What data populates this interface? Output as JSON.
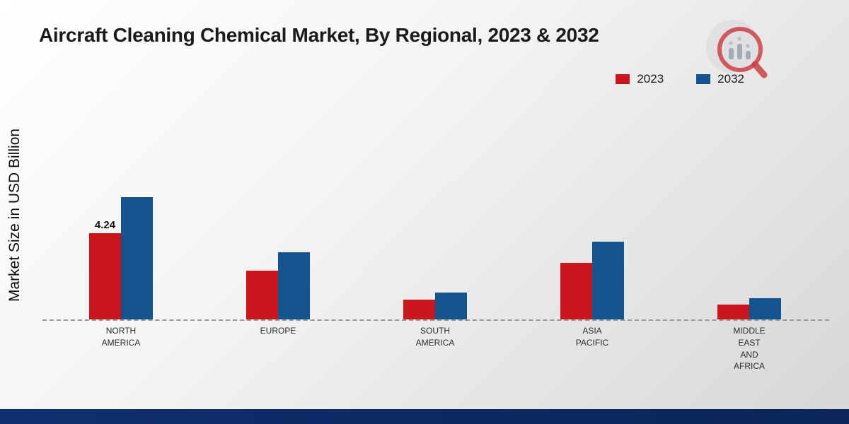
{
  "page": {
    "title": "Aircraft Cleaning Chemical Market, By Regional, 2023 & 2032",
    "ylabel": "Market Size in USD Billion"
  },
  "colors": {
    "accent_red": "#c9151b",
    "accent_blue": "#15538f",
    "footer_navy": "#0e2f6e",
    "baseline_gray": "#9a9a9a"
  },
  "chart_data": {
    "type": "bar",
    "title": "Aircraft Cleaning Chemical Market, By Regional, 2023 & 2032",
    "xlabel": "",
    "ylabel": "Market Size in USD Billion",
    "categories": [
      "NORTH AMERICA",
      "EUROPE",
      "SOUTH AMERICA",
      "ASIA PACIFIC",
      "MIDDLE EAST AND AFRICA"
    ],
    "category_lines": [
      [
        "NORTH",
        "AMERICA"
      ],
      [
        "EUROPE"
      ],
      [
        "SOUTH",
        "AMERICA"
      ],
      [
        "ASIA",
        "PACIFIC"
      ],
      [
        "MIDDLE",
        "EAST",
        "AND",
        "AFRICA"
      ]
    ],
    "series": [
      {
        "name": "2023",
        "color": "#c9151b",
        "values": [
          4.24,
          2.4,
          0.98,
          2.8,
          0.72
        ]
      },
      {
        "name": "2032",
        "color": "#15538f",
        "values": [
          6.0,
          3.3,
          1.32,
          3.82,
          1.05
        ]
      }
    ],
    "bar_labels": [
      {
        "series": "2023",
        "category": "NORTH AMERICA",
        "text": "4.24"
      }
    ],
    "ylim": [
      0,
      10.5
    ],
    "grid": false,
    "legend_position": "top-right",
    "baseline_style": "dashed"
  }
}
